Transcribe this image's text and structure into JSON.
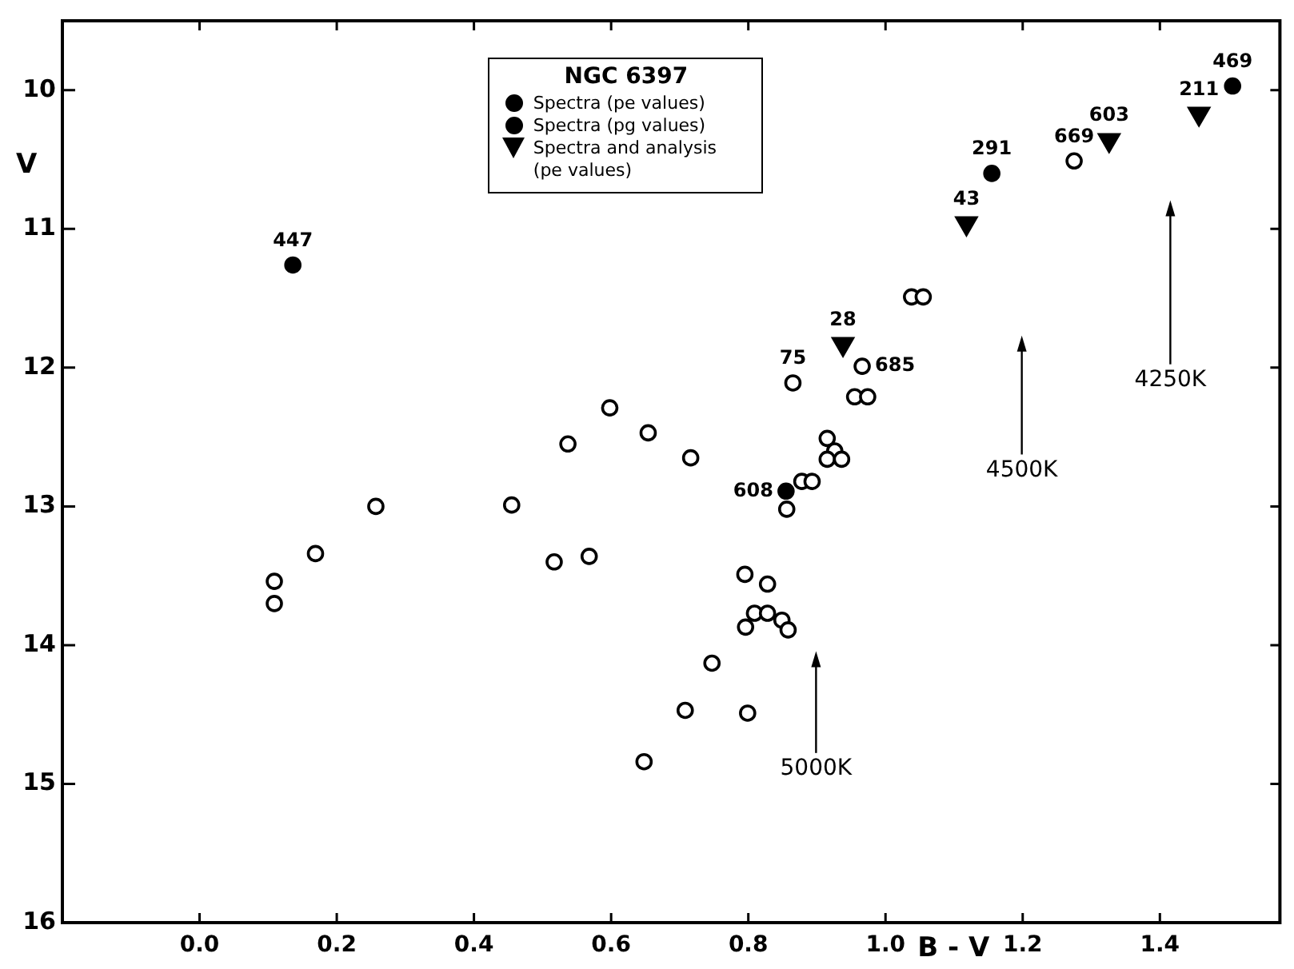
{
  "chart_data": {
    "type": "scatter",
    "xlabel": "B - V",
    "ylabel": "V",
    "legend_title": "NGC 6397",
    "legend": "top",
    "xlim": [
      -0.2,
      1.575
    ],
    "ylim": [
      16,
      9.5
    ],
    "xticks": [
      {
        "value": 0,
        "label": "0.0"
      },
      {
        "value": 0.2,
        "label": "0.2"
      },
      {
        "value": 0.4,
        "label": "0.4"
      },
      {
        "value": 0.6,
        "label": "0.6"
      },
      {
        "value": 0.8,
        "label": "0.8"
      },
      {
        "value": 1.0,
        "label": "1.0"
      },
      {
        "value": 1.2,
        "label": "1.2"
      },
      {
        "value": 1.4,
        "label": "1.4"
      }
    ],
    "yticks": [
      10,
      11,
      12,
      13,
      14,
      15,
      16
    ],
    "grid": false,
    "series": [
      {
        "color": "#000000",
        "marker": "circle",
        "x": [
          0.598,
          0.537,
          0.654,
          0.716,
          0.856,
          0.878,
          0.893,
          0.915,
          0.926,
          0.915,
          0.936,
          0.865,
          0.966,
          0.955,
          0.974,
          1.038,
          1.055,
          1.275,
          0.109,
          0.109,
          0.169,
          0.257,
          0.455,
          0.517,
          0.568,
          0.648,
          0.795,
          0.828,
          0.809,
          0.828,
          0.796,
          0.849,
          0.858,
          0.747,
          0.708,
          0.799
        ],
        "values": [
          12.29,
          12.55,
          12.47,
          12.65,
          13.02,
          12.82,
          12.82,
          12.51,
          12.6,
          12.66,
          12.66,
          12.11,
          11.99,
          12.21,
          12.21,
          11.49,
          11.49,
          10.51,
          13.54,
          13.7,
          13.34,
          13.0,
          12.99,
          13.4,
          13.36,
          14.84,
          13.49,
          13.56,
          13.77,
          13.77,
          13.87,
          13.82,
          13.89,
          14.13,
          14.47,
          14.49
        ]
      },
      {
        "name": "Spectra (pe values)",
        "color": "#000000",
        "marker": "circle",
        "x": [
          0.136,
          0.855
        ],
        "values": [
          11.26,
          12.89
        ]
      },
      {
        "name": "Spectra (pg values)",
        "color": "#000000",
        "marker": "circle",
        "x": [
          1.155,
          1.506
        ],
        "values": [
          10.6,
          9.97
        ]
      },
      {
        "name": "Spectra and analysis (pe values)",
        "color": "#000000",
        "marker": "triangle",
        "x": [
          0.938,
          1.118,
          1.326,
          1.457
        ],
        "values": [
          11.83,
          10.96,
          10.36,
          10.17
        ]
      }
    ],
    "annotations": [
      {
        "text": "447",
        "x": 0.136,
        "y": 11.26
      },
      {
        "text": "608",
        "x": 0.855,
        "y": 12.89
      },
      {
        "text": "75",
        "x": 0.865,
        "y": 12.11
      },
      {
        "text": "685",
        "x": 0.966,
        "y": 11.99
      },
      {
        "text": "28",
        "x": 0.938,
        "y": 11.83
      },
      {
        "text": "43",
        "x": 1.118,
        "y": 10.96
      },
      {
        "text": "291",
        "x": 1.155,
        "y": 10.6
      },
      {
        "text": "669",
        "x": 1.275,
        "y": 10.51
      },
      {
        "text": "603",
        "x": 1.326,
        "y": 10.36
      },
      {
        "text": "211",
        "x": 1.457,
        "y": 10.17
      },
      {
        "text": "469",
        "x": 1.506,
        "y": 9.97
      },
      "5000K",
      "4500K",
      "4250K"
    ]
  }
}
